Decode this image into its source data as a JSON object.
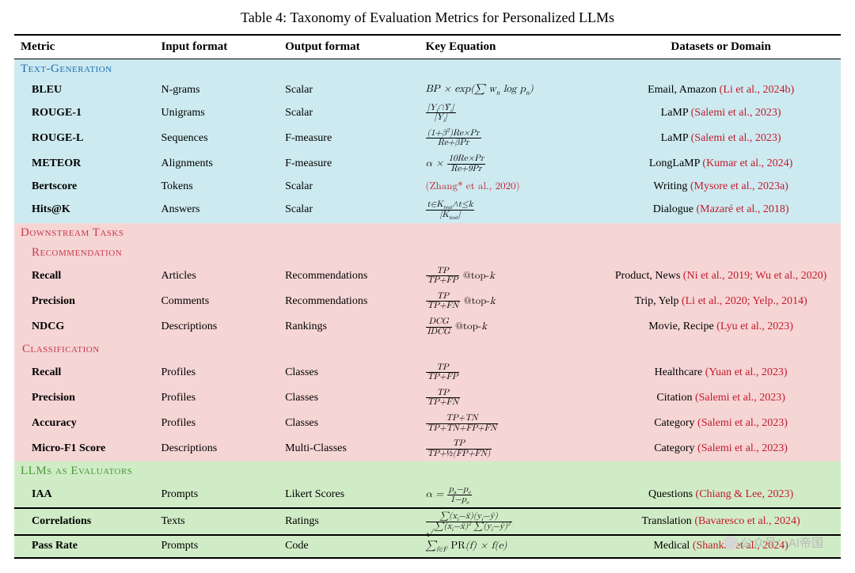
{
  "title": "Table 4: Taxonomy of Evaluation Metrics for Personalized LLMs",
  "headers": {
    "metric": "Metric",
    "input": "Input format",
    "output": "Output format",
    "equation": "Key Equation",
    "datasets": "Datasets or Domain"
  },
  "sections": {
    "textgen": {
      "label": "Text-Generation",
      "bg": "#cdeaf0",
      "label_color": "#1b6fb3",
      "rows": [
        {
          "metric": "BLEU",
          "input": "N-grams",
          "output": "Scalar",
          "eq": "BP × exp(∑ w<sub>n</sub> log p<sub>n</sub>)",
          "ds_prefix": "Email, Amazon ",
          "cite": "(Li et al., 2024b)"
        },
        {
          "metric": "ROUGE-1",
          "input": "Unigrams",
          "output": "Scalar",
          "eq": "<span class='frac'><span class='num'>|Y<sub>i</sub>∩Ŷ<sub>i</sub>|</span><span class='den'>|Y<sub>i</sub>|</span></span>",
          "ds_prefix": "LaMP ",
          "cite": "(Salemi et al., 2023)"
        },
        {
          "metric": "ROUGE-L",
          "input": "Sequences",
          "output": "F-measure",
          "eq": "<span class='frac'><span class='num'>(1+β<sup>2</sup>)Re×Pr</span><span class='den'>Re+βPr</span></span>",
          "ds_prefix": "LaMP ",
          "cite": "(Salemi et al., 2023)"
        },
        {
          "metric": "METEOR",
          "input": "Alignments",
          "output": "F-measure",
          "eq": "α × <span class='frac'><span class='num'>10Re×Pr</span><span class='den'>Re+9Pr</span></span>",
          "ds_prefix": "LongLaMP ",
          "cite": "(Kumar et al., 2024)"
        },
        {
          "metric": "Bertscore",
          "input": "Tokens",
          "output": "Scalar",
          "eq": "<span class='cite rm'>(Zhang* et al., 2020)</span>",
          "ds_prefix": "Writing ",
          "cite": "(Mysore et al., 2023a)"
        },
        {
          "metric": "Hits@K",
          "input": "Answers",
          "output": "Scalar",
          "eq": "<span class='frac'><span class='num'>t∈K<sub>test</sub>∧t≤k</span><span class='den'>|K<sub>test</sub>|</span></span>",
          "ds_prefix": "Dialogue ",
          "cite": "(Mazaré et al., 2018)"
        }
      ]
    },
    "downstream": {
      "label": "Downstream Tasks",
      "bg": "#f6d5d5",
      "label_color": "#c6394a"
    },
    "recommendation": {
      "label": "Recommendation",
      "bg": "#f6d5d5",
      "label_color": "#c6394a",
      "rows": [
        {
          "metric": "Recall",
          "input": "Articles",
          "output": "Recommendations",
          "eq": "<span class='frac'><span class='num'>TP</span><span class='den'>TP+FP</span></span> <span class='rm'>@top-</span>k",
          "ds_prefix": "Product, News ",
          "cite": "(Ni et al., 2019; Wu et al., 2020)"
        },
        {
          "metric": "Precision",
          "input": "Comments",
          "output": "Recommendations",
          "eq": "<span class='frac'><span class='num'>TP</span><span class='den'>TP+FN</span></span> <span class='rm'>@top-</span>k",
          "ds_prefix": "Trip, Yelp ",
          "cite": "(Li et al., 2020; Yelp., 2014)"
        },
        {
          "metric": "NDCG",
          "input": "Descriptions",
          "output": "Rankings",
          "eq": "<span class='frac'><span class='num'>DCG</span><span class='den'>IDCG</span></span> <span class='rm'>@top-</span>k",
          "ds_prefix": "Movie, Recipe ",
          "cite": "(Lyu et al., 2023)"
        }
      ]
    },
    "classification": {
      "label": "Classification",
      "bg": "#f6d5d5",
      "label_color": "#c6394a",
      "rows": [
        {
          "metric": "Recall",
          "input": "Profiles",
          "output": "Classes",
          "eq": "<span class='frac'><span class='num'>TP</span><span class='den'>TP+FP</span></span>",
          "ds_prefix": "Healthcare ",
          "cite": "(Yuan et al., 2023)"
        },
        {
          "metric": "Precision",
          "input": "Profiles",
          "output": "Classes",
          "eq": "<span class='frac'><span class='num'>TP</span><span class='den'>TP+FN</span></span>",
          "ds_prefix": "Citation ",
          "cite": "(Salemi et al., 2023)"
        },
        {
          "metric": "Accuracy",
          "input": "Profiles",
          "output": "Classes",
          "eq": "<span class='frac'><span class='num'>TP+TN</span><span class='den'>TP+TN+FP+FN</span></span>",
          "ds_prefix": "Category ",
          "cite": "(Salemi et al., 2023)"
        },
        {
          "metric": "Micro-F1 Score",
          "input": "Descriptions",
          "output": "Multi-Classes",
          "eq": "<span class='frac'><span class='num'>TP</span><span class='den'>TP+½(FP+FN)</span></span>",
          "ds_prefix": "Category ",
          "cite": "(Salemi et al., 2023)"
        }
      ]
    },
    "llmseval": {
      "label": "LLMs as Evaluators",
      "bg": "#d0ecc7",
      "label_color": "#4a9a3a",
      "rows": [
        {
          "metric": "IAA",
          "input": "Prompts",
          "output": "Likert Scores",
          "eq": "α = <span class='frac'><span class='num'>p<sub>a</sub>−p<sub>e</sub></span><span class='den'>1−p<sub>e</sub></span></span>",
          "ds_prefix": "Questions ",
          "cite": "(Chiang & Lee, 2023)"
        },
        {
          "metric": "Correlations",
          "input": "Texts",
          "output": "Ratings",
          "eq": "<span class='frac'><span class='num'>∑(x<sub>i</sub>−x̄)(y<sub>i</sub>−ȳ)</span><span class='den'>√∑(x<sub>i</sub>−x̄)<sup>2</sup> ∑(y<sub>i</sub>−ȳ)<sup>2</sup></span></span>",
          "ds_prefix": "Translation ",
          "cite": "(Bavaresco et al., 2024)"
        },
        {
          "metric": "Pass Rate",
          "input": "Prompts",
          "output": "Code",
          "eq": "∑<sub>f∈F</sub> <span class='rm'>PR</span>(f) × f(e)",
          "ds_prefix": "Medical ",
          "cite": "(Shankar et al., 2024)"
        }
      ]
    }
  },
  "watermark": "公众号：AI帝国",
  "section_font_variant": "small-caps",
  "cite_color": "#c21a2c",
  "border_color": "#000000",
  "col_widths_pct": [
    17,
    15,
    17,
    22,
    29
  ]
}
